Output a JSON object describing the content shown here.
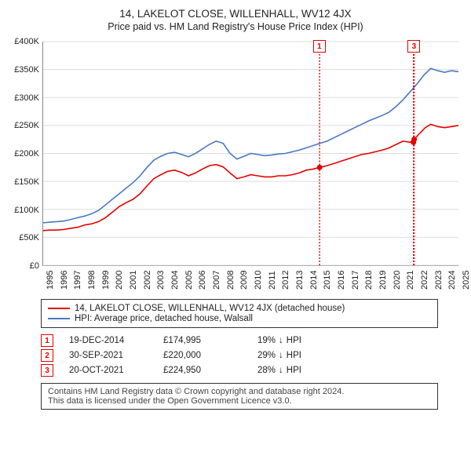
{
  "title": "14, LAKELOT CLOSE, WILLENHALL, WV12 4JX",
  "subtitle": "Price paid vs. HM Land Registry's House Price Index (HPI)",
  "chart": {
    "type": "line",
    "x_start_year": 1995,
    "x_end_year": 2025,
    "x_tick_step": 1,
    "ylim": [
      0,
      400000
    ],
    "ytick_step": 50000,
    "y_prefix": "£",
    "y_suffix_k": "K",
    "background_color": "#ffffff",
    "grid_color": "#dddddd",
    "axis_color": "#888888",
    "label_fontsize": 11,
    "series": [
      {
        "name": "14, LAKELOT CLOSE, WILLENHALL, WV12 4JX (detached house)",
        "color": "#e60000",
        "points": [
          [
            1995.0,
            62000
          ],
          [
            1995.5,
            63000
          ],
          [
            1996.0,
            63000
          ],
          [
            1996.5,
            64000
          ],
          [
            1997.0,
            66000
          ],
          [
            1997.5,
            68000
          ],
          [
            1998.0,
            72000
          ],
          [
            1998.5,
            74000
          ],
          [
            1999.0,
            78000
          ],
          [
            1999.5,
            85000
          ],
          [
            2000.0,
            95000
          ],
          [
            2000.5,
            105000
          ],
          [
            2001.0,
            112000
          ],
          [
            2001.5,
            118000
          ],
          [
            2002.0,
            128000
          ],
          [
            2002.5,
            142000
          ],
          [
            2003.0,
            155000
          ],
          [
            2003.5,
            162000
          ],
          [
            2004.0,
            168000
          ],
          [
            2004.5,
            170000
          ],
          [
            2005.0,
            166000
          ],
          [
            2005.5,
            160000
          ],
          [
            2006.0,
            165000
          ],
          [
            2006.5,
            172000
          ],
          [
            2007.0,
            178000
          ],
          [
            2007.5,
            180000
          ],
          [
            2008.0,
            176000
          ],
          [
            2008.5,
            165000
          ],
          [
            2009.0,
            155000
          ],
          [
            2009.5,
            158000
          ],
          [
            2010.0,
            162000
          ],
          [
            2010.5,
            160000
          ],
          [
            2011.0,
            158000
          ],
          [
            2011.5,
            158000
          ],
          [
            2012.0,
            160000
          ],
          [
            2012.5,
            160000
          ],
          [
            2013.0,
            162000
          ],
          [
            2013.5,
            165000
          ],
          [
            2014.0,
            170000
          ],
          [
            2014.5,
            172000
          ],
          [
            2015.0,
            175000
          ],
          [
            2015.5,
            178000
          ],
          [
            2016.0,
            182000
          ],
          [
            2016.5,
            186000
          ],
          [
            2017.0,
            190000
          ],
          [
            2017.5,
            194000
          ],
          [
            2018.0,
            198000
          ],
          [
            2018.5,
            200000
          ],
          [
            2019.0,
            203000
          ],
          [
            2019.5,
            206000
          ],
          [
            2020.0,
            210000
          ],
          [
            2020.5,
            216000
          ],
          [
            2021.0,
            222000
          ],
          [
            2021.5,
            220000
          ],
          [
            2021.8,
            225000
          ],
          [
            2022.2,
            236000
          ],
          [
            2022.6,
            246000
          ],
          [
            2023.0,
            252000
          ],
          [
            2023.5,
            248000
          ],
          [
            2024.0,
            246000
          ],
          [
            2024.5,
            248000
          ],
          [
            2025.0,
            250000
          ]
        ]
      },
      {
        "name": "HPI: Average price, detached house, Walsall",
        "color": "#4a78c4",
        "points": [
          [
            1995.0,
            76000
          ],
          [
            1995.5,
            77000
          ],
          [
            1996.0,
            78000
          ],
          [
            1996.5,
            79000
          ],
          [
            1997.0,
            82000
          ],
          [
            1997.5,
            85000
          ],
          [
            1998.0,
            88000
          ],
          [
            1998.5,
            92000
          ],
          [
            1999.0,
            98000
          ],
          [
            1999.5,
            108000
          ],
          [
            2000.0,
            118000
          ],
          [
            2000.5,
            128000
          ],
          [
            2001.0,
            138000
          ],
          [
            2001.5,
            148000
          ],
          [
            2002.0,
            160000
          ],
          [
            2002.5,
            175000
          ],
          [
            2003.0,
            188000
          ],
          [
            2003.5,
            195000
          ],
          [
            2004.0,
            200000
          ],
          [
            2004.5,
            202000
          ],
          [
            2005.0,
            198000
          ],
          [
            2005.5,
            194000
          ],
          [
            2006.0,
            200000
          ],
          [
            2006.5,
            208000
          ],
          [
            2007.0,
            216000
          ],
          [
            2007.5,
            222000
          ],
          [
            2008.0,
            218000
          ],
          [
            2008.5,
            200000
          ],
          [
            2009.0,
            190000
          ],
          [
            2009.5,
            195000
          ],
          [
            2010.0,
            200000
          ],
          [
            2010.5,
            198000
          ],
          [
            2011.0,
            196000
          ],
          [
            2011.5,
            197000
          ],
          [
            2012.0,
            199000
          ],
          [
            2012.5,
            200000
          ],
          [
            2013.0,
            203000
          ],
          [
            2013.5,
            206000
          ],
          [
            2014.0,
            210000
          ],
          [
            2014.5,
            214000
          ],
          [
            2015.0,
            218000
          ],
          [
            2015.5,
            222000
          ],
          [
            2016.0,
            228000
          ],
          [
            2016.5,
            234000
          ],
          [
            2017.0,
            240000
          ],
          [
            2017.5,
            246000
          ],
          [
            2018.0,
            252000
          ],
          [
            2018.5,
            258000
          ],
          [
            2019.0,
            263000
          ],
          [
            2019.5,
            268000
          ],
          [
            2020.0,
            274000
          ],
          [
            2020.5,
            284000
          ],
          [
            2021.0,
            296000
          ],
          [
            2021.5,
            310000
          ],
          [
            2022.0,
            324000
          ],
          [
            2022.5,
            340000
          ],
          [
            2023.0,
            352000
          ],
          [
            2023.5,
            348000
          ],
          [
            2024.0,
            345000
          ],
          [
            2024.5,
            348000
          ],
          [
            2025.0,
            346000
          ]
        ]
      }
    ],
    "sale_markers": [
      {
        "idx": "1",
        "year": 2014.97,
        "price": 174995,
        "color": "#e60000"
      },
      {
        "idx": "2",
        "year": 2021.75,
        "price": 220000,
        "color": "#e60000"
      },
      {
        "idx": "3",
        "year": 2021.8,
        "price": 224950,
        "color": "#e60000"
      }
    ]
  },
  "legend": {
    "rows": [
      {
        "color": "#e60000",
        "label": "14, LAKELOT CLOSE, WILLENHALL, WV12 4JX (detached house)"
      },
      {
        "color": "#4a78c4",
        "label": "HPI: Average price, detached house, Walsall"
      }
    ]
  },
  "sales": [
    {
      "idx": "1",
      "date": "19-DEC-2014",
      "price": "£174,995",
      "diff": "19%",
      "arrow": "↓",
      "suffix": "HPI",
      "color": "#e60000"
    },
    {
      "idx": "2",
      "date": "30-SEP-2021",
      "price": "£220,000",
      "diff": "29%",
      "arrow": "↓",
      "suffix": "HPI",
      "color": "#e60000"
    },
    {
      "idx": "3",
      "date": "20-OCT-2021",
      "price": "£224,950",
      "diff": "28%",
      "arrow": "↓",
      "suffix": "HPI",
      "color": "#e60000"
    }
  ],
  "footer": {
    "line1": "Contains HM Land Registry data © Crown copyright and database right 2024.",
    "line2": "This data is licensed under the Open Government Licence v3.0."
  }
}
